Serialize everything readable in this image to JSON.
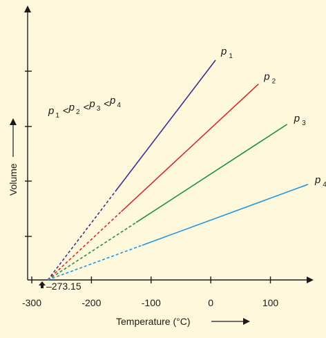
{
  "chart_data": {
    "type": "line",
    "xlabel": "Temperature (°C)",
    "ylabel": "Volume",
    "xlim": [
      -300,
      170
    ],
    "x_ticks": [
      -300,
      -200,
      -100,
      0,
      100
    ],
    "x_tick_labels": [
      "-300",
      "-200",
      "-100",
      "0",
      "100"
    ],
    "intercept_label": "–273.15",
    "intercept_x": -273.15,
    "relation": {
      "p": "p",
      "subs": [
        "1",
        "2",
        "3",
        "4"
      ],
      "op": "<"
    },
    "series": [
      {
        "name": "p",
        "sub": "1",
        "color": "#3a2f8a",
        "dashed_until_x": -160,
        "end_x": 8,
        "end_y": 322
      },
      {
        "name": "p",
        "sub": "2",
        "color": "#d62a2a",
        "dashed_until_x": -150,
        "end_x": 80,
        "end_y": 287
      },
      {
        "name": "p",
        "sub": "3",
        "color": "#22923a",
        "dashed_until_x": -125,
        "end_x": 128,
        "end_y": 228
      },
      {
        "name": "p",
        "sub": "4",
        "color": "#1e96e0",
        "dashed_until_x": -115,
        "end_x": 163,
        "end_y": 140
      }
    ]
  }
}
